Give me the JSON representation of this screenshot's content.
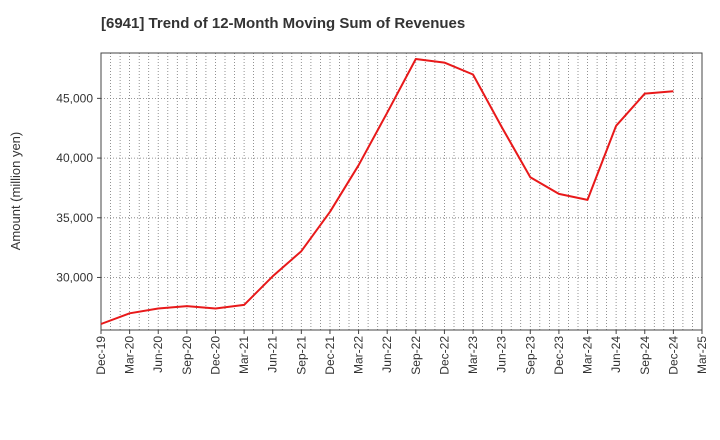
{
  "chart_data": {
    "type": "line",
    "title": "[6941]  Trend of 12-Month Moving Sum of Revenues",
    "xlabel": "",
    "ylabel": "Amount (million yen)",
    "x_ticks": [
      "Dec-19",
      "Mar-20",
      "Jun-20",
      "Sep-20",
      "Dec-20",
      "Mar-21",
      "Jun-21",
      "Sep-21",
      "Dec-21",
      "Mar-22",
      "Jun-22",
      "Sep-22",
      "Dec-22",
      "Mar-23",
      "Jun-23",
      "Sep-23",
      "Dec-23",
      "Mar-24",
      "Jun-24",
      "Sep-24",
      "Dec-24",
      "Mar-25"
    ],
    "y_ticks": [
      30000,
      35000,
      40000,
      45000
    ],
    "y_tick_labels": [
      "30,000",
      "35,000",
      "40,000",
      "45,000"
    ],
    "ylim": [
      25600,
      48800
    ],
    "grid": true,
    "series": [
      {
        "color": "#e8191a",
        "x": [
          "Dec-19",
          "Mar-20",
          "Jun-20",
          "Sep-20",
          "Dec-20",
          "Mar-21",
          "Jun-21",
          "Sep-21",
          "Dec-21",
          "Mar-22",
          "Jun-22",
          "Sep-22",
          "Dec-22",
          "Mar-23",
          "Jun-23",
          "Sep-23",
          "Dec-23",
          "Mar-24",
          "Jun-24",
          "Sep-24",
          "Dec-24"
        ],
        "values": [
          26100,
          27000,
          27400,
          27600,
          27400,
          27700,
          30100,
          32200,
          35500,
          39400,
          43800,
          48300,
          48000,
          47000,
          42600,
          38400,
          37000,
          36500,
          42700,
          45400,
          45600
        ]
      }
    ]
  }
}
